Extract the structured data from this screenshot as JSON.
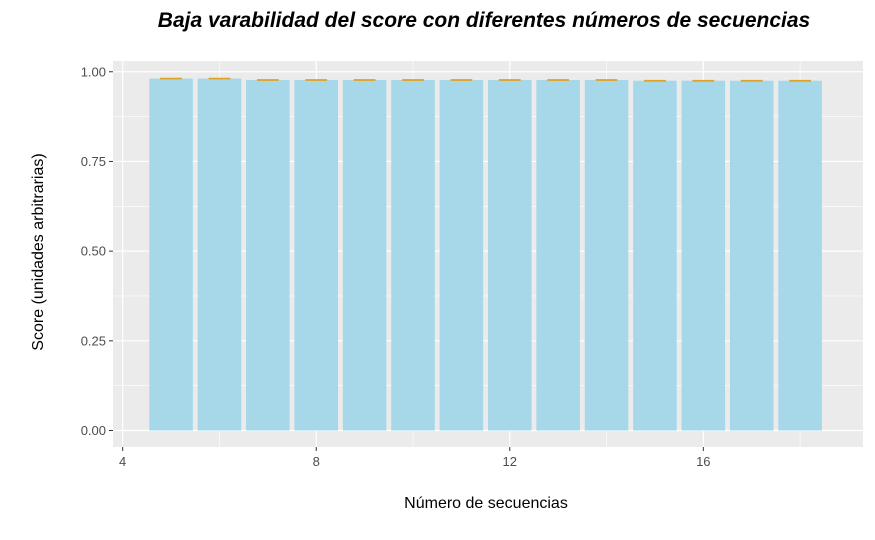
{
  "chart_data": {
    "type": "bar",
    "title": "Baja varabilidad del score con diferentes números de secuencias",
    "xlabel": "Número de secuencias",
    "ylabel": "Score (unidades arbitrarias)",
    "x": [
      5,
      6,
      7,
      8,
      9,
      10,
      11,
      12,
      13,
      14,
      15,
      16,
      17,
      18
    ],
    "values": [
      0.981,
      0.981,
      0.977,
      0.977,
      0.977,
      0.977,
      0.977,
      0.977,
      0.977,
      0.977,
      0.975,
      0.975,
      0.975,
      0.975
    ],
    "error_low": [
      0.98,
      0.98,
      0.976,
      0.976,
      0.976,
      0.976,
      0.976,
      0.976,
      0.976,
      0.976,
      0.974,
      0.974,
      0.974,
      0.974
    ],
    "error_high": [
      0.982,
      0.982,
      0.978,
      0.978,
      0.978,
      0.978,
      0.978,
      0.978,
      0.978,
      0.978,
      0.976,
      0.976,
      0.976,
      0.976
    ],
    "xlim": [
      3.8,
      19.3
    ],
    "ylim": [
      -0.046,
      1.03
    ],
    "x_ticks": [
      4,
      8,
      12,
      16
    ],
    "y_ticks": [
      0.0,
      0.25,
      0.5,
      0.75,
      1.0
    ],
    "x_tick_labels": [
      "4",
      "8",
      "12",
      "16"
    ],
    "y_tick_labels": [
      "0.00",
      "0.25",
      "0.50",
      "0.75",
      "1.00"
    ],
    "grid": true,
    "legend": "none",
    "colors": {
      "bar": "#a6d8ea",
      "error_bar": "#e0a020",
      "panel_background": "#ebebeb",
      "grid": "#ffffff"
    }
  }
}
